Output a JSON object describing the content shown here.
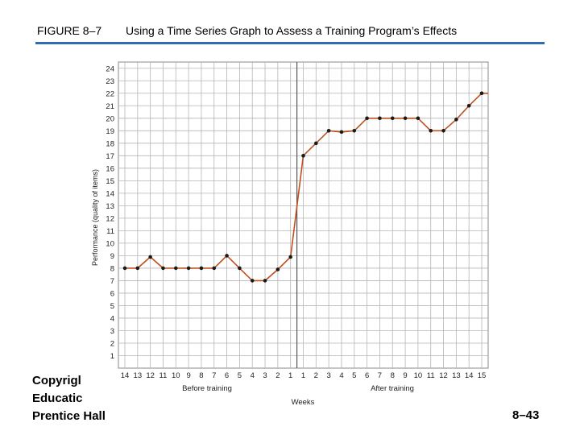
{
  "header": {
    "figure_number": "FIGURE 8–7",
    "title": "Using a Time Series Graph to Assess a Training Program’s Effects"
  },
  "footer": {
    "copyright_lines": [
      "Copyrigl",
      "Educatic",
      "Prentice Hall"
    ],
    "page_number": "8–43"
  },
  "colors": {
    "line": "#c0501e",
    "point": "#1a1a1a",
    "rule": "#2f6db3",
    "grid": "#b5b5b5"
  },
  "chart_data": {
    "type": "line",
    "ylabel": "Performance (quality of items)",
    "xlabel": "Weeks",
    "group_labels": [
      "Before training",
      "After training"
    ],
    "yticks": [
      1,
      2,
      3,
      4,
      5,
      6,
      7,
      8,
      9,
      10,
      11,
      12,
      13,
      14,
      15,
      16,
      17,
      18,
      19,
      20,
      21,
      22,
      23,
      24
    ],
    "ylim": [
      0,
      24.5
    ],
    "x": [
      "14",
      "13",
      "12",
      "11",
      "10",
      "9",
      "8",
      "7",
      "6",
      "5",
      "4",
      "3",
      "2",
      "1",
      "1",
      "2",
      "3",
      "4",
      "5",
      "6",
      "7",
      "8",
      "9",
      "10",
      "11",
      "12",
      "13",
      "14",
      "15"
    ],
    "series": [
      {
        "values": [
          8,
          8,
          8.9,
          8,
          8,
          8,
          8,
          8,
          9,
          8,
          7,
          7,
          7.9,
          8.9,
          17,
          18,
          19,
          18.9,
          19,
          20,
          20,
          20,
          20,
          20,
          19,
          19,
          19.9,
          21,
          22
        ]
      }
    ],
    "grid": true
  }
}
